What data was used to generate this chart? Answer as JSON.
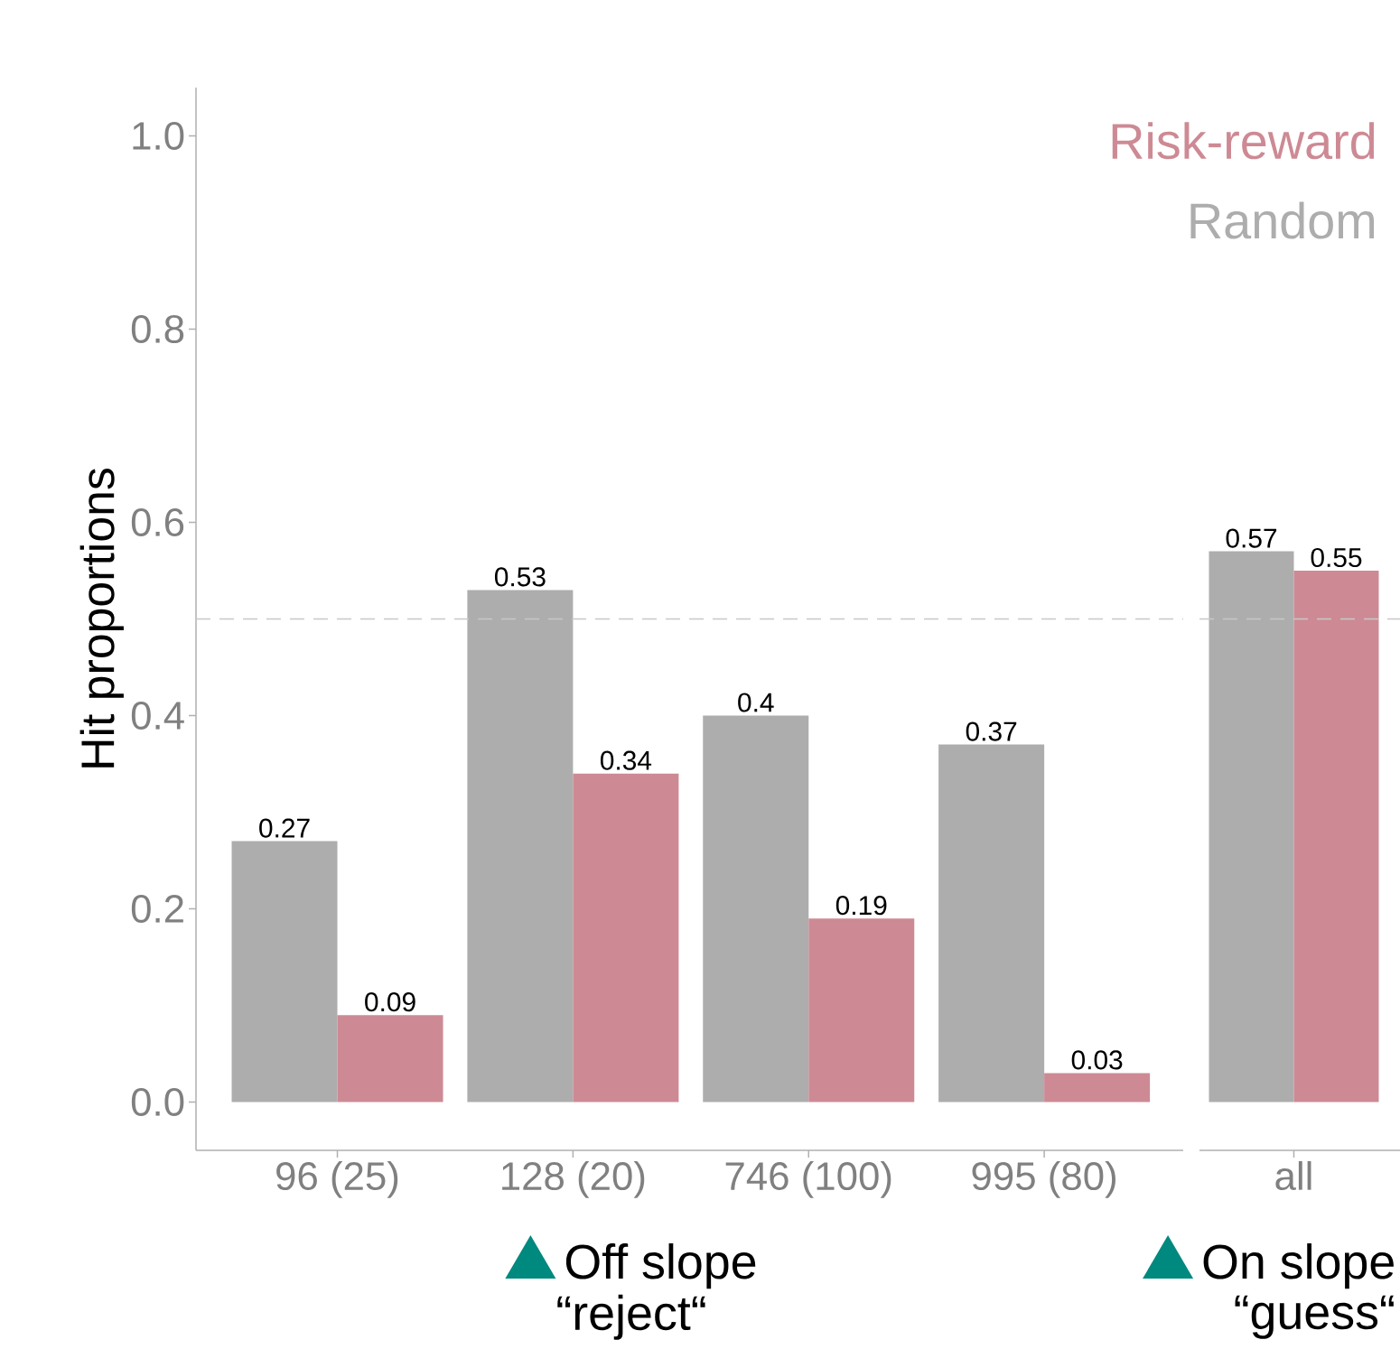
{
  "chart_data": [
    {
      "type": "bar",
      "ylabel": "Hit proportions",
      "categories": [
        "96 (25)",
        "128 (20)",
        "746 (100)",
        "995 (80)"
      ],
      "series": [
        {
          "name": "Random",
          "color": "#adadad",
          "values": [
            0.27,
            0.53,
            0.4,
            0.37
          ]
        },
        {
          "name": "Risk-reward",
          "color": "#cd8a94",
          "values": [
            0.09,
            0.34,
            0.19,
            0.03
          ]
        }
      ],
      "ylim": [
        -0.05,
        1.05
      ],
      "yticks": [
        {
          "value": 0,
          "label": "0.0"
        },
        0.2,
        0.4,
        0.6,
        0.8,
        {
          "value": 1,
          "label": "1.0"
        }
      ],
      "ref_lines": [
        {
          "axis": "y",
          "value": 0.5,
          "color": "#c8c8c8",
          "line_style": "dashed"
        }
      ],
      "data_labels": true,
      "legend": "top right",
      "annotations": [
        "Off slope",
        "“reject“"
      ]
    },
    {
      "type": "bar",
      "categories": [
        "all"
      ],
      "series": [
        {
          "color": "#adadad",
          "values": [
            0.57
          ]
        },
        {
          "color": "#cd8a94",
          "values": [
            0.55
          ]
        }
      ],
      "tick_labels": "x",
      "ref_lines": [
        {
          "axis": "y",
          "value": 0.5,
          "color": "#c8c8c8",
          "line_style": "dashed"
        }
      ],
      "data_labels": true,
      "annotations": [
        "On slope",
        "“guess“"
      ]
    }
  ]
}
